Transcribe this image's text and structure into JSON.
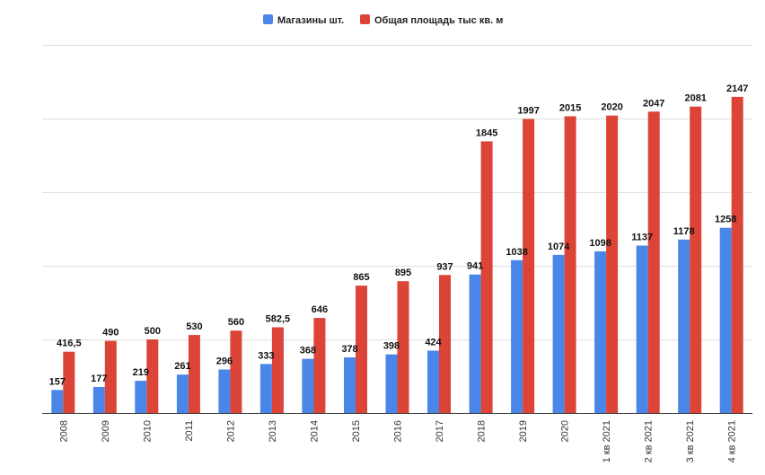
{
  "chart_data": {
    "type": "bar",
    "categories": [
      "2008",
      "2009",
      "2010",
      "2011",
      "2012",
      "2013",
      "2014",
      "2015",
      "2016",
      "2017",
      "2018",
      "2019",
      "2020",
      "1 кв 2021",
      "2 кв 2021",
      "3 кв 2021",
      "4 кв 2021"
    ],
    "series": [
      {
        "name": "Магазины шт.",
        "color": "#4a86e8",
        "values": [
          157,
          177,
          219,
          261,
          296,
          333,
          368,
          378,
          398,
          424,
          941,
          1038,
          1074,
          1098,
          1137,
          1178,
          1258
        ],
        "labels": [
          "157",
          "177",
          "219",
          "261",
          "296",
          "333",
          "368",
          "378",
          "398",
          "424",
          "941",
          "1038",
          "1074",
          "1098",
          "1137",
          "1178",
          "1258"
        ]
      },
      {
        "name": "Общая площадь тыс кв. м",
        "color": "#db4437",
        "values": [
          416.5,
          490,
          500,
          530,
          560,
          582.5,
          646,
          865,
          895,
          937,
          1845,
          1997,
          2015,
          2020,
          2047,
          2081,
          2147
        ],
        "labels": [
          "416,5",
          "490",
          "500",
          "530",
          "560",
          "582,5",
          "646",
          "865",
          "895",
          "937",
          "1845",
          "1997",
          "2015",
          "2020",
          "2047",
          "2081",
          "2147"
        ]
      }
    ],
    "ylim": [
      0,
      2500
    ],
    "gridlines": [
      0,
      500,
      1000,
      1500,
      2000,
      2500
    ],
    "grid": true,
    "legend": "top-center",
    "title": "",
    "xlabel": "",
    "ylabel": ""
  }
}
